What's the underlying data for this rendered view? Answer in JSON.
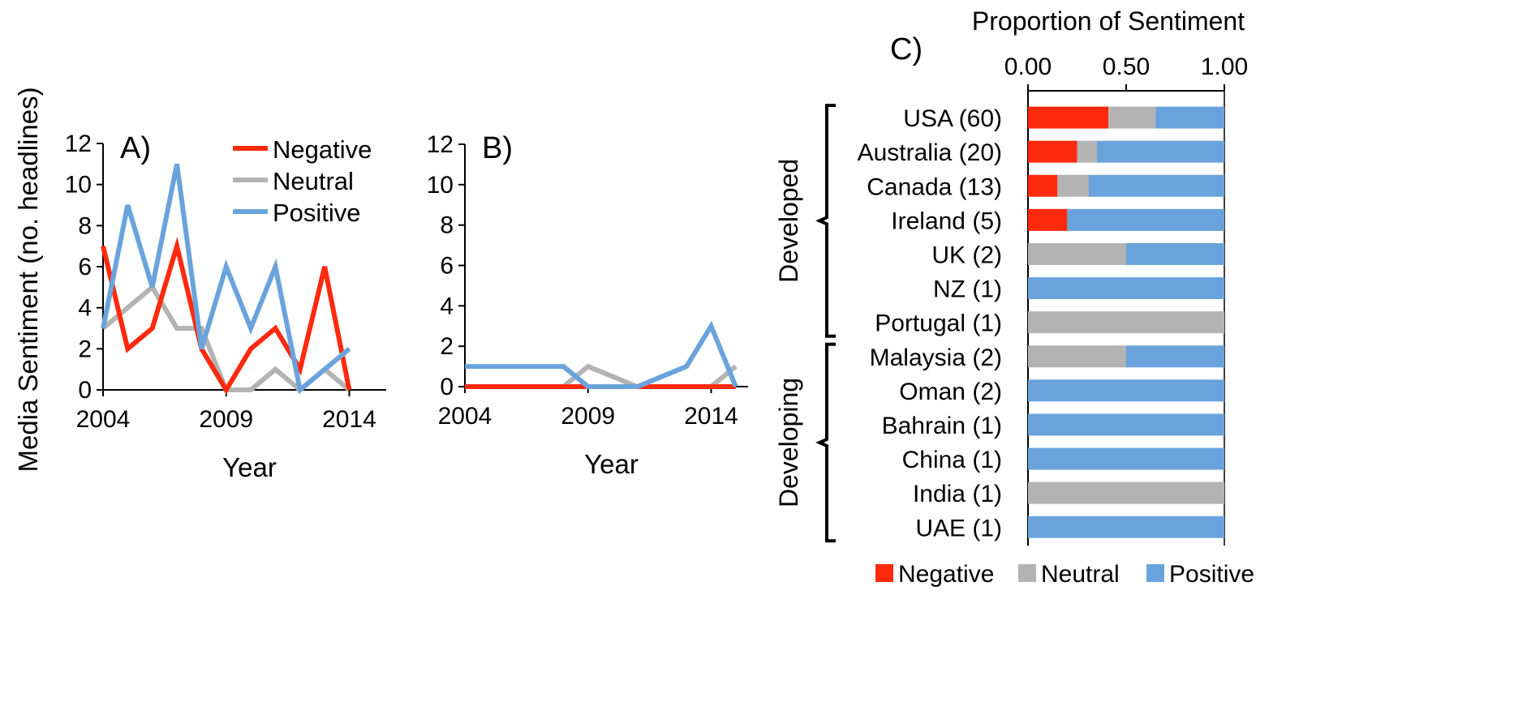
{
  "colors": {
    "Negative": "#ff2a0e",
    "Neutral": "#b3b3b3",
    "Positive": "#6aa3dc"
  },
  "chart_data": [
    {
      "type": "line",
      "panel_label": "A)",
      "ylabel": "Media Sentiment (no. headlines)",
      "xlabel": "Year",
      "ylim": [
        0,
        12
      ],
      "yticks": [
        "0",
        "2",
        "4",
        "6",
        "8",
        "10",
        "12"
      ],
      "xlim": [
        2004,
        2015.5
      ],
      "xticks": [
        "2004",
        "2009",
        "2014"
      ],
      "x": [
        2004,
        2005,
        2006,
        2007,
        2008,
        2009,
        2010,
        2011,
        2012,
        2013,
        2014
      ],
      "series": [
        {
          "name": "Negative",
          "values": [
            7,
            2,
            3,
            7,
            2,
            0,
            2,
            3,
            1,
            6,
            0
          ]
        },
        {
          "name": "Neutral",
          "values": [
            3,
            4,
            5,
            3,
            3,
            0,
            0,
            1,
            0,
            1,
            0
          ]
        },
        {
          "name": "Positive",
          "values": [
            3,
            9,
            5,
            11,
            2,
            6,
            3,
            6,
            0,
            1,
            2
          ]
        }
      ],
      "legend": [
        "Negative",
        "Neutral",
        "Positive"
      ]
    },
    {
      "type": "line",
      "panel_label": "B)",
      "xlabel": "Year",
      "ylim": [
        0,
        12
      ],
      "yticks": [
        "0",
        "2",
        "4",
        "6",
        "8",
        "10",
        "12"
      ],
      "xlim": [
        2004,
        2015.5
      ],
      "xticks": [
        "2004",
        "2009",
        "2014"
      ],
      "x": [
        2004,
        2005,
        2006,
        2007,
        2008,
        2009,
        2010,
        2011,
        2012,
        2013,
        2014,
        2015
      ],
      "series": [
        {
          "name": "Negative",
          "values": [
            0,
            0,
            0,
            0,
            0,
            0,
            0,
            0,
            0,
            0,
            0,
            0
          ]
        },
        {
          "name": "Neutral",
          "values": [
            0,
            0,
            0,
            0,
            0,
            1,
            0.5,
            0,
            0,
            0,
            0,
            1
          ]
        },
        {
          "name": "Positive",
          "values": [
            1,
            1,
            1,
            1,
            1,
            0,
            0,
            0,
            0.5,
            1,
            3,
            0
          ]
        }
      ]
    },
    {
      "type": "bar",
      "orientation": "horizontal",
      "stacked": true,
      "panel_label": "C)",
      "title": "Proportion of Sentiment",
      "xlim": [
        0,
        1
      ],
      "xticks": [
        "0.00",
        "0.50",
        "1.00"
      ],
      "groups": [
        {
          "label": "Developed",
          "categories": [
            "USA (60)",
            "Australia (20)",
            "Canada (13)",
            "Ireland (5)",
            "UK (2)",
            "NZ (1)",
            "Portugal (1)"
          ]
        },
        {
          "label": "Developing",
          "categories": [
            "Malaysia (2)",
            "Oman (2)",
            "Bahrain (1)",
            "China (1)",
            "India (1)",
            "UAE (1)"
          ]
        }
      ],
      "categories": [
        "USA (60)",
        "Australia (20)",
        "Canada (13)",
        "Ireland (5)",
        "UK (2)",
        "NZ (1)",
        "Portugal (1)",
        "Malaysia (2)",
        "Oman (2)",
        "Bahrain (1)",
        "China (1)",
        "India (1)",
        "UAE (1)"
      ],
      "series": [
        {
          "name": "Negative",
          "values": [
            0.41,
            0.25,
            0.15,
            0.2,
            0,
            0,
            0,
            0,
            0,
            0,
            0,
            0,
            0
          ]
        },
        {
          "name": "Neutral",
          "values": [
            0.24,
            0.1,
            0.16,
            0,
            0.5,
            0,
            1,
            0.5,
            0,
            0,
            0,
            1,
            0
          ]
        },
        {
          "name": "Positive",
          "values": [
            0.35,
            0.65,
            0.69,
            0.8,
            0.5,
            1,
            0,
            0.5,
            1,
            1,
            1,
            0,
            1
          ]
        }
      ],
      "legend": [
        "Negative",
        "Neutral",
        "Positive"
      ],
      "legend_position": "bottom"
    }
  ]
}
